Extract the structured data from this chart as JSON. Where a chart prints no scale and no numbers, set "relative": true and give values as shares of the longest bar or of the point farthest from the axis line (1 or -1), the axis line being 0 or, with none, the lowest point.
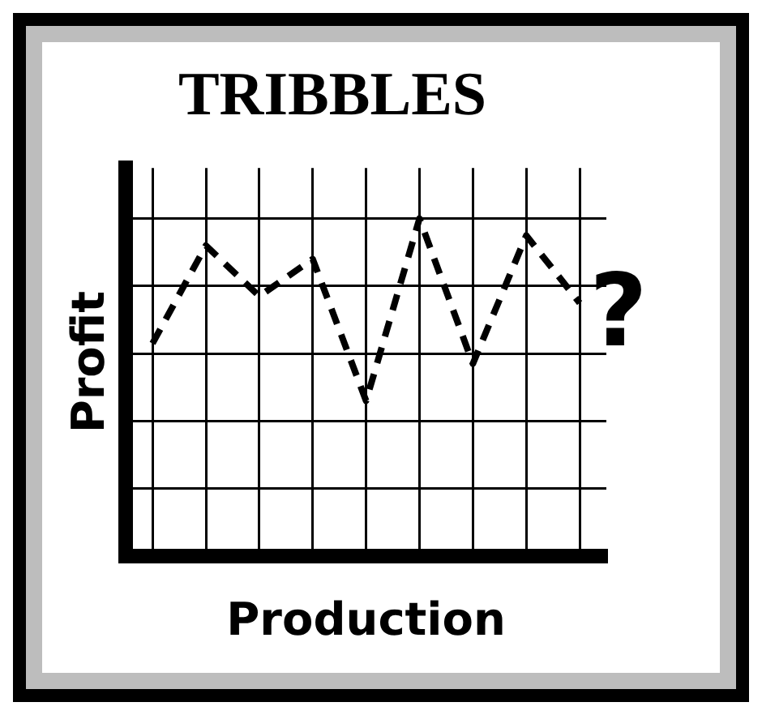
{
  "chart_data": {
    "type": "line",
    "title": "TRIBBLES",
    "xlabel": "Production",
    "ylabel": "Profit",
    "relative": true,
    "categories": [
      null,
      null,
      null,
      null,
      null,
      null,
      null,
      null,
      null
    ],
    "series": [
      {
        "color": "#000000",
        "values": [
          0.63,
          0.92,
          0.77,
          0.88,
          0.46,
          1,
          0.57,
          0.95,
          0.75
        ]
      }
    ],
    "line_style": "dashed",
    "marker": "none",
    "grid": true,
    "legend": false,
    "annotations": [
      "?"
    ]
  }
}
